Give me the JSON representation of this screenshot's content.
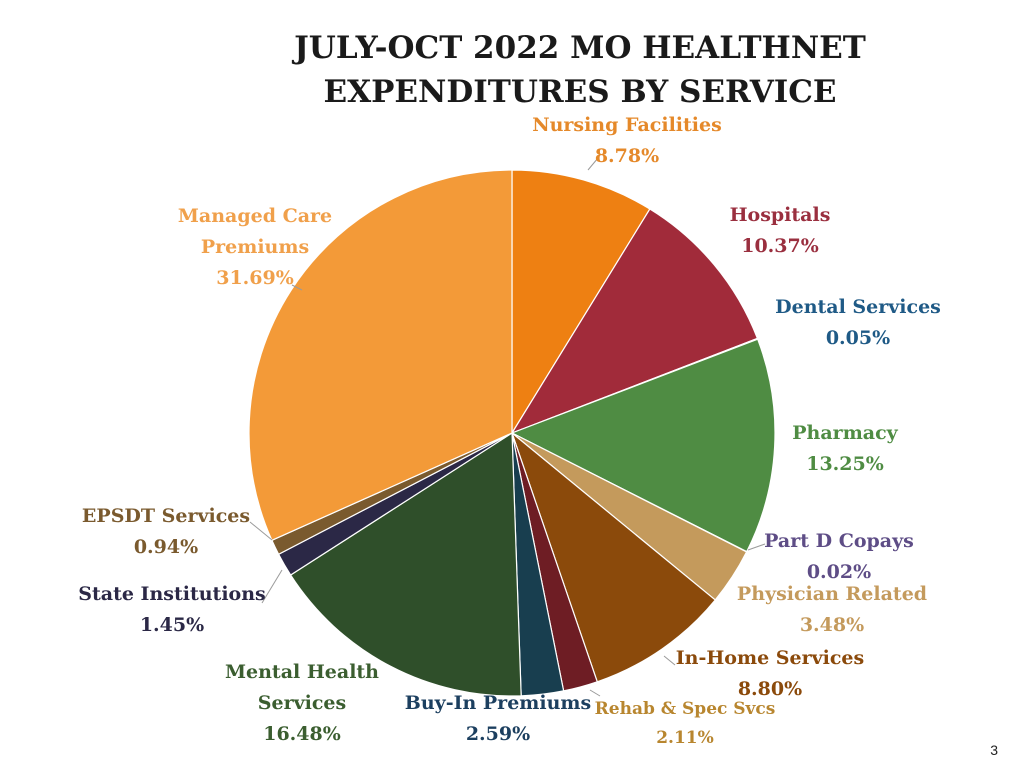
{
  "chart_data": {
    "type": "pie",
    "title_lines": [
      "JULY-OCT 2022 MO HEALTHNET",
      "EXPENDITURES BY SERVICE"
    ],
    "slices": [
      {
        "key": "nursing",
        "name_lines": [
          "Nursing Facilities"
        ],
        "label": "8.78%",
        "value": 8.78,
        "color": "#EE8012"
      },
      {
        "key": "hospitals",
        "name_lines": [
          "Hospitals"
        ],
        "label": "10.37%",
        "value": 10.37,
        "color": "#A12B3A"
      },
      {
        "key": "dental",
        "name_lines": [
          "Dental Services"
        ],
        "label": "0.05%",
        "value": 0.05,
        "color": "#1F5A86"
      },
      {
        "key": "pharmacy",
        "name_lines": [
          "Pharmacy"
        ],
        "label": "13.25%",
        "value": 13.25,
        "color": "#4F8C43"
      },
      {
        "key": "partd",
        "name_lines": [
          "Part D Copays"
        ],
        "label": "0.02%",
        "value": 0.02,
        "color": "#5E4D86"
      },
      {
        "key": "physician",
        "name_lines": [
          "Physician Related"
        ],
        "label": "3.48%",
        "value": 3.48,
        "color": "#C49A5C"
      },
      {
        "key": "inhome",
        "name_lines": [
          "In-Home Services"
        ],
        "label": "8.80%",
        "value": 8.8,
        "color": "#8B4A0B"
      },
      {
        "key": "rehab",
        "name_lines": [
          "Rehab & Spec Svcs"
        ],
        "label": "2.11%",
        "value": 2.11,
        "color": "#6E1D24"
      },
      {
        "key": "buyin",
        "name_lines": [
          "Buy-In Premiums"
        ],
        "label": "2.59%",
        "value": 2.59,
        "color": "#183E4F"
      },
      {
        "key": "mental",
        "name_lines": [
          "Mental Health",
          "Services"
        ],
        "label": "16.48%",
        "value": 16.48,
        "color": "#2F4F2A"
      },
      {
        "key": "state",
        "name_lines": [
          "State Institutions"
        ],
        "label": "1.45%",
        "value": 1.45,
        "color": "#2B2846"
      },
      {
        "key": "epsdt",
        "name_lines": [
          "EPSDT Services"
        ],
        "label": "0.94%",
        "value": 0.94,
        "color": "#7A5A2E"
      },
      {
        "key": "managed",
        "name_lines": [
          "Managed Care",
          "Premiums"
        ],
        "label": "31.69%",
        "value": 31.69,
        "color": "#F39A38"
      }
    ],
    "label_colors": {
      "nursing": "#E5892A",
      "hospitals": "#9A2F3F",
      "dental": "#1F5A86",
      "pharmacy": "#4F8C43",
      "partd": "#5E4D86",
      "physician": "#C49A5C",
      "inhome": "#8B4A0B",
      "rehab": "#B8862F",
      "buyin": "#1C3F5F",
      "mental": "#3B5E30",
      "state": "#2B2846",
      "epsdt": "#7A5A2E",
      "managed": "#F0A04B"
    }
  },
  "page_number": "3"
}
